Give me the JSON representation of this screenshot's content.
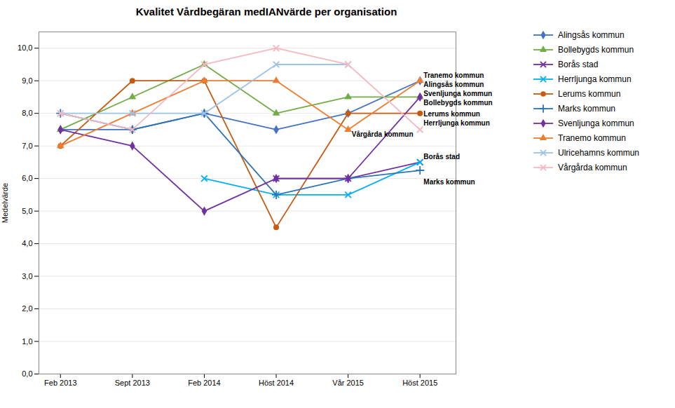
{
  "chart_data": {
    "type": "line",
    "title": "Kvalitet Vårdbegäran medIANvärde per organisation",
    "ylabel": "Medelvärde",
    "categories": [
      "Feb 2013",
      "Sept 2013",
      "Feb 2014",
      "Höst 2014",
      "Vår 2015",
      "Höst 2015"
    ],
    "series": [
      {
        "name": "Alingsås kommun",
        "color": "#4472C4",
        "marker": "diamond",
        "values": [
          7.5,
          7.5,
          8.0,
          7.5,
          8.0,
          9.0
        ]
      },
      {
        "name": "Bollebygds kommun",
        "color": "#70AD47",
        "marker": "triangle",
        "values": [
          7.5,
          8.5,
          9.5,
          8.0,
          8.5,
          8.5
        ]
      },
      {
        "name": "Borås stad",
        "color": "#7030A0",
        "marker": "x",
        "values": [
          null,
          null,
          null,
          6.0,
          6.0,
          6.5
        ]
      },
      {
        "name": "Herrljunga kommun",
        "color": "#00B0F0",
        "marker": "x",
        "values": [
          null,
          null,
          6.0,
          5.5,
          5.5,
          6.5
        ]
      },
      {
        "name": "Lerums kommun",
        "color": "#C55A11",
        "marker": "circle",
        "values": [
          7.0,
          9.0,
          9.0,
          4.5,
          8.0,
          8.0
        ]
      },
      {
        "name": "Marks kommun",
        "color": "#2E75B6",
        "marker": "plus",
        "values": [
          8.0,
          7.5,
          8.0,
          5.5,
          6.0,
          6.25
        ]
      },
      {
        "name": "Svenljunga kommun",
        "color": "#7030A0",
        "marker": "diamond",
        "values": [
          7.5,
          7.0,
          5.0,
          6.0,
          6.0,
          8.5
        ]
      },
      {
        "name": "Tranemo kommun",
        "color": "#ED7D31",
        "marker": "triangle",
        "values": [
          7.0,
          8.0,
          9.0,
          9.0,
          7.5,
          9.0
        ]
      },
      {
        "name": "Ulricehamns kommun",
        "color": "#9DC3E6",
        "marker": "x",
        "values": [
          8.0,
          8.0,
          8.0,
          9.5,
          9.5,
          null
        ]
      },
      {
        "name": "Vårgårda kommun",
        "color": "#F4B8C1",
        "marker": "x",
        "values": [
          8.0,
          7.5,
          9.5,
          10.0,
          9.5,
          7.5
        ]
      }
    ],
    "annotations": [
      {
        "text": "Tranemo kommun",
        "x": 5.05,
        "y": 9.1
      },
      {
        "text": "Alingsås kommun",
        "x": 5.05,
        "y": 8.82
      },
      {
        "text": "Svenljunga kommun",
        "x": 5.05,
        "y": 8.54
      },
      {
        "text": "Bollebygds kommun",
        "x": 5.05,
        "y": 8.26
      },
      {
        "text": "Lerums kommun",
        "x": 5.05,
        "y": 7.9
      },
      {
        "text": "Herrljunga kommun",
        "x": 5.05,
        "y": 7.62
      },
      {
        "text": "Vårgårda kommun",
        "x": 4.05,
        "y": 7.28
      },
      {
        "text": "Borås stad",
        "x": 5.05,
        "y": 6.6
      },
      {
        "text": "Marks kommun",
        "x": 5.05,
        "y": 5.82
      }
    ],
    "ylim": [
      0,
      10.5
    ],
    "yticks": [
      {
        "value": 0.0,
        "label": "0,0"
      },
      {
        "value": 1.0,
        "label": "1,0"
      },
      {
        "value": 2.0,
        "label": "2,0"
      },
      {
        "value": 3.0,
        "label": "3,0"
      },
      {
        "value": 4.0,
        "label": "4,0"
      },
      {
        "value": 5.0,
        "label": "5,0"
      },
      {
        "value": 6.0,
        "label": "6,0"
      },
      {
        "value": 7.0,
        "label": "7,0"
      },
      {
        "value": 8.0,
        "label": "8,0"
      },
      {
        "value": 9.0,
        "label": "9,0"
      },
      {
        "value": 10.0,
        "label": "10,0"
      }
    ],
    "grid": true,
    "legend": "right"
  }
}
